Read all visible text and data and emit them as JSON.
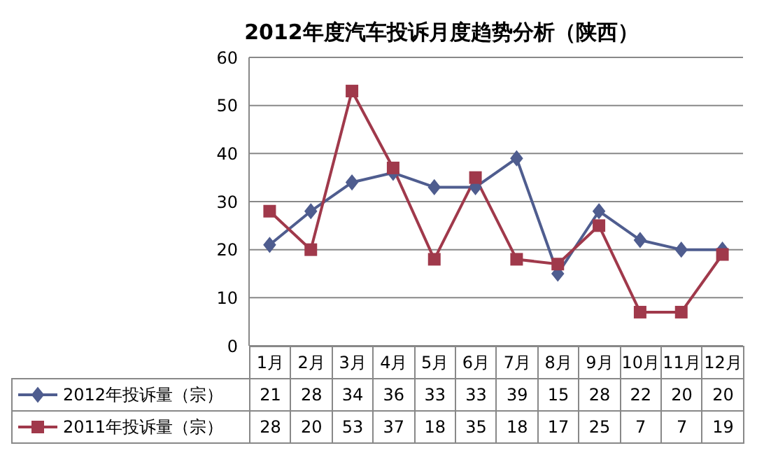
{
  "chart_data": {
    "type": "line",
    "title": "2012年度汽车投诉月度趋势分析（陕西）",
    "categories": [
      "1月",
      "2月",
      "3月",
      "4月",
      "5月",
      "6月",
      "7月",
      "8月",
      "9月",
      "10月",
      "11月",
      "12月"
    ],
    "series": [
      {
        "name": "2012年投诉量（宗）",
        "color": "#4f5d8f",
        "marker": "diamond",
        "values": [
          21,
          28,
          34,
          36,
          33,
          33,
          39,
          15,
          28,
          22,
          20,
          20
        ]
      },
      {
        "name": "2011年投诉量（宗）",
        "color": "#a0394b",
        "marker": "square",
        "values": [
          28,
          20,
          53,
          37,
          18,
          35,
          18,
          17,
          25,
          7,
          7,
          19
        ]
      }
    ],
    "ylim": [
      0,
      60
    ],
    "yticks": [
      0,
      10,
      20,
      30,
      40,
      50,
      60
    ],
    "grid": "y",
    "legend": "bottom",
    "data_labels": true
  }
}
